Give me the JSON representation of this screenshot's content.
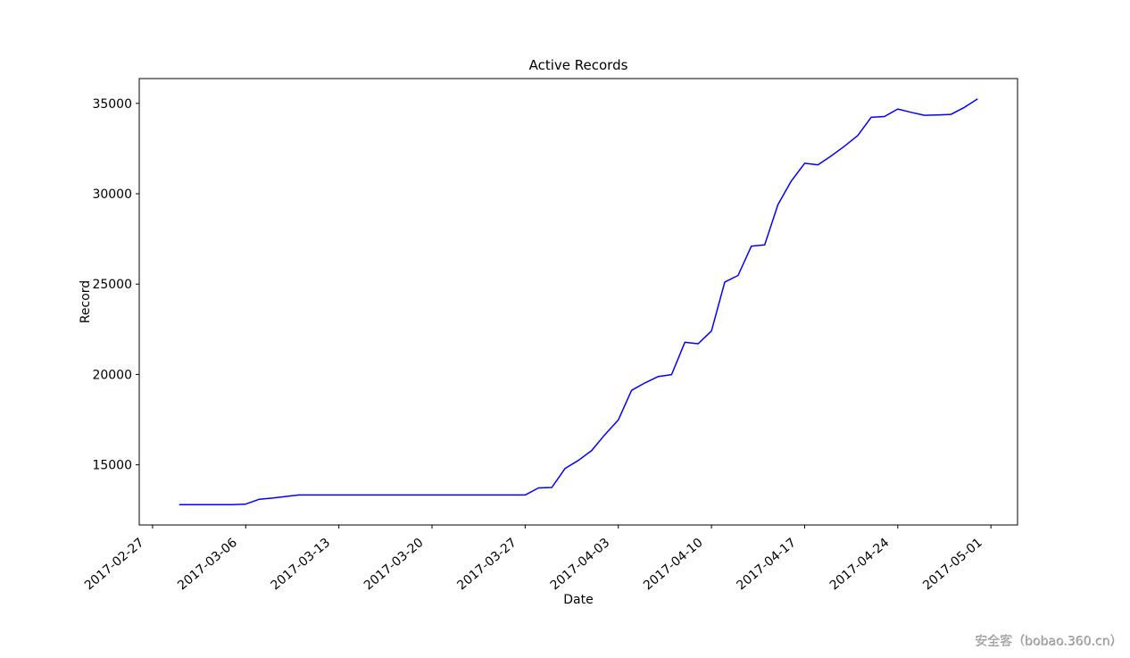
{
  "figure": {
    "title": "Active Records",
    "watermark": "安全客（bobao.360.cn）"
  },
  "chart_data": {
    "type": "line",
    "title": "Active Records",
    "xlabel": "Date",
    "ylabel": "Record",
    "grid": false,
    "legend": "none",
    "line_color": "#0000ff",
    "xlim": [
      "2017-02-26",
      "2017-05-03"
    ],
    "ylim": [
      11672,
      36373
    ],
    "x_ticks": [
      "2017-02-27",
      "2017-03-06",
      "2017-03-13",
      "2017-03-20",
      "2017-03-27",
      "2017-04-03",
      "2017-04-10",
      "2017-04-17",
      "2017-04-24",
      "2017-05-01"
    ],
    "y_ticks": [
      15000,
      20000,
      25000,
      30000,
      35000
    ],
    "series": [
      {
        "name": "Active Records",
        "color": "#0000ff",
        "x": [
          "2017-03-01",
          "2017-03-02",
          "2017-03-03",
          "2017-03-04",
          "2017-03-05",
          "2017-03-06",
          "2017-03-07",
          "2017-03-08",
          "2017-03-09",
          "2017-03-10",
          "2017-03-11",
          "2017-03-12",
          "2017-03-13",
          "2017-03-14",
          "2017-03-15",
          "2017-03-16",
          "2017-03-17",
          "2017-03-18",
          "2017-03-19",
          "2017-03-20",
          "2017-03-21",
          "2017-03-22",
          "2017-03-23",
          "2017-03-24",
          "2017-03-25",
          "2017-03-26",
          "2017-03-27",
          "2017-03-28",
          "2017-03-29",
          "2017-03-30",
          "2017-03-31",
          "2017-04-01",
          "2017-04-02",
          "2017-04-03",
          "2017-04-04",
          "2017-04-05",
          "2017-04-06",
          "2017-04-07",
          "2017-04-08",
          "2017-04-09",
          "2017-04-10",
          "2017-04-11",
          "2017-04-12",
          "2017-04-13",
          "2017-04-14",
          "2017-04-15",
          "2017-04-16",
          "2017-04-17",
          "2017-04-18",
          "2017-04-19",
          "2017-04-20",
          "2017-04-21",
          "2017-04-22",
          "2017-04-23",
          "2017-04-24",
          "2017-04-25",
          "2017-04-26",
          "2017-04-27",
          "2017-04-28",
          "2017-04-29",
          "2017-04-30"
        ],
        "values": [
          12800,
          12800,
          12800,
          12800,
          12800,
          12830,
          13090,
          13160,
          13250,
          13330,
          13330,
          13330,
          13330,
          13330,
          13330,
          13330,
          13330,
          13330,
          13330,
          13330,
          13330,
          13330,
          13330,
          13330,
          13330,
          13330,
          13330,
          13720,
          13745,
          14800,
          15245,
          15790,
          16675,
          17480,
          19120,
          19530,
          19890,
          19990,
          21780,
          21700,
          22405,
          25115,
          25480,
          27100,
          27170,
          29400,
          30700,
          31685,
          31600,
          32095,
          32635,
          33225,
          34230,
          34275,
          34690,
          34505,
          34345,
          34360,
          34390,
          34775,
          35250
        ]
      }
    ]
  }
}
